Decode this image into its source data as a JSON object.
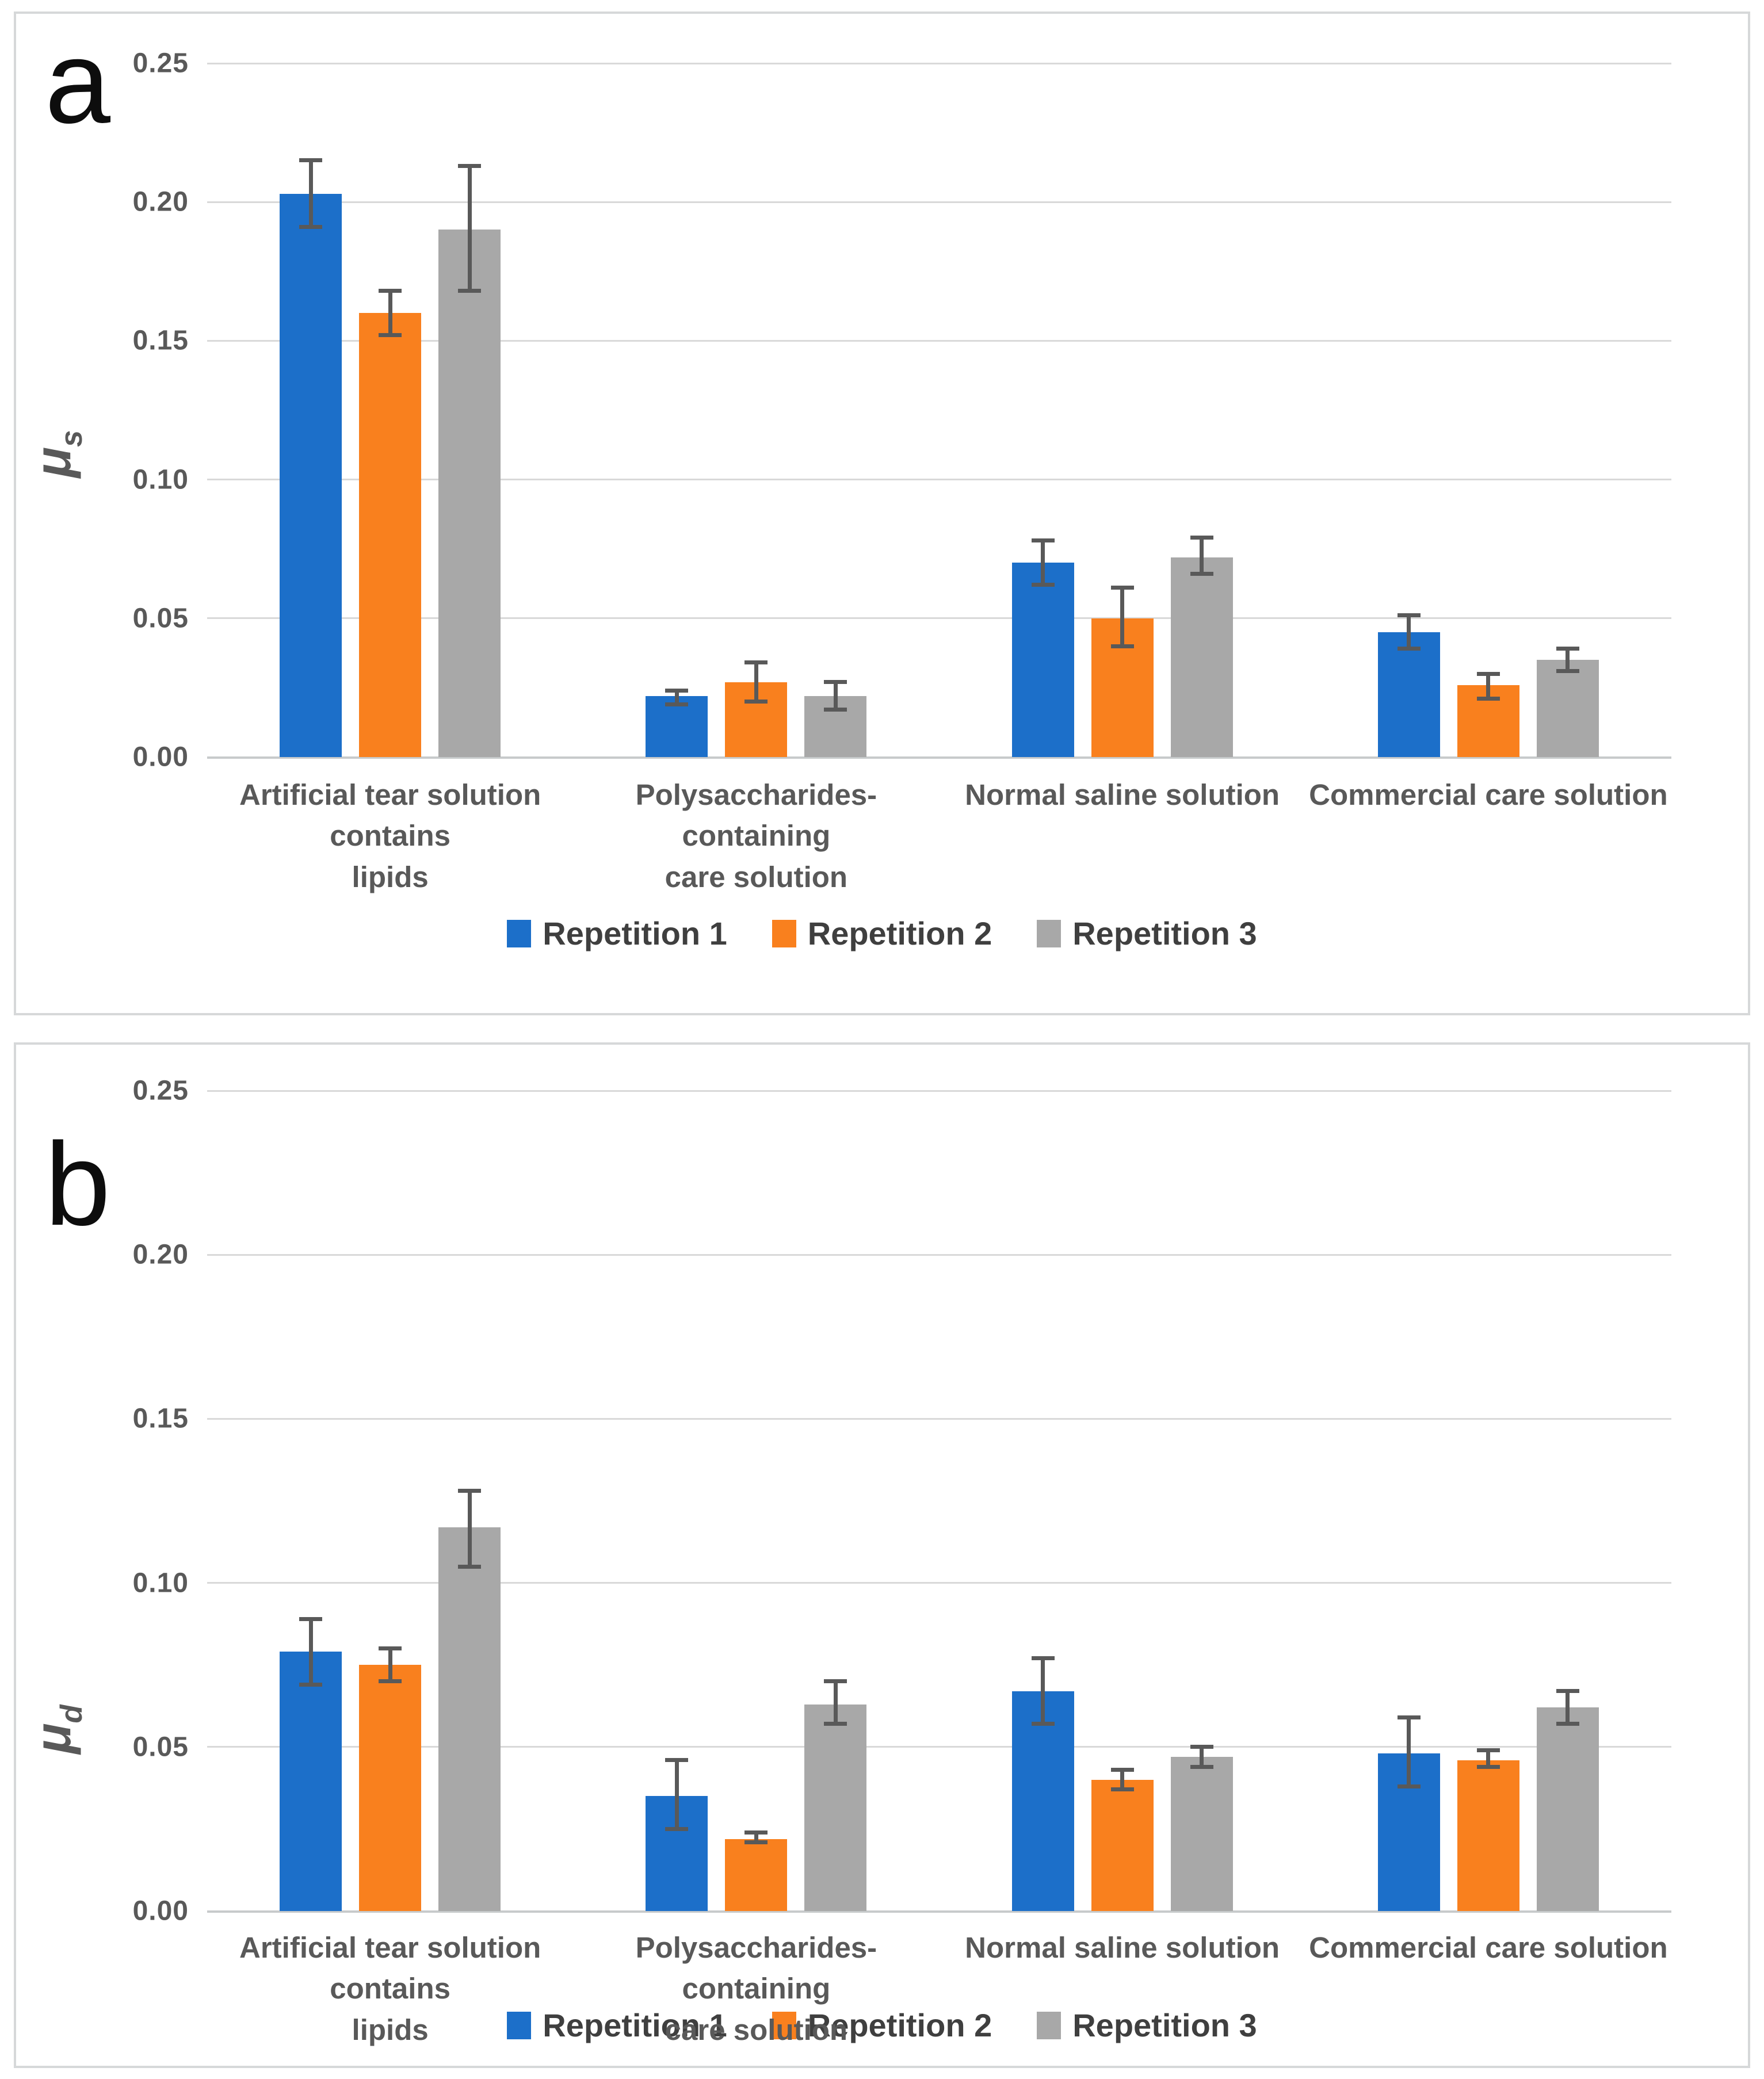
{
  "figure": {
    "background": "#ffffff",
    "panel_border_color": "#d6d8d9",
    "gridline_color": "#d9d9d9",
    "error_bar_color": "#595959",
    "tick_text_color": "#595959",
    "category_text_color": "#595959",
    "legend_text_color": "#3f3f3f"
  },
  "chart_data": [
    {
      "type": "bar",
      "panel_label": "a",
      "ylabel": "μs",
      "ylabel_base": "μ",
      "ylabel_sub": "s",
      "categories": [
        "Artificial tear solution contains\nlipids",
        "Polysaccharides-containing\ncare solution",
        "Normal saline solution",
        "Commercial care solution"
      ],
      "category_names": [
        "artificial-tear",
        "polysaccharides",
        "normal-saline",
        "commercial"
      ],
      "series": [
        {
          "name": "Repetition 1",
          "color": "#1C6FC9",
          "values": [
            0.203,
            0.022,
            0.07,
            0.045
          ],
          "error_low": [
            0.191,
            0.019,
            0.062,
            0.039
          ],
          "error_high": [
            0.215,
            0.024,
            0.078,
            0.051
          ]
        },
        {
          "name": "Repetition 2",
          "color": "#F9801E",
          "values": [
            0.16,
            0.027,
            0.05,
            0.026
          ],
          "error_low": [
            0.152,
            0.02,
            0.04,
            0.021
          ],
          "error_high": [
            0.168,
            0.034,
            0.061,
            0.03
          ]
        },
        {
          "name": "Repetition 3",
          "color": "#A8A8A8",
          "values": [
            0.19,
            0.022,
            0.072,
            0.035
          ],
          "error_low": [
            0.168,
            0.017,
            0.066,
            0.031
          ],
          "error_high": [
            0.213,
            0.027,
            0.079,
            0.039
          ]
        }
      ],
      "ylim": [
        0,
        0.25
      ],
      "yticks": [
        0,
        0.05,
        0.1,
        0.15,
        0.2,
        0.25
      ],
      "ytick_labels": [
        "0.00",
        "0.05",
        "0.10",
        "0.15",
        "0.20",
        "0.25"
      ],
      "grid": true,
      "legend_position": "bottom",
      "error_bars": true
    },
    {
      "type": "bar",
      "panel_label": "b",
      "ylabel": "μd",
      "ylabel_base": "μ",
      "ylabel_sub": "d",
      "categories": [
        "Artificial tear solution contains\nlipids",
        "Polysaccharides-containing\ncare solution",
        "Normal saline solution",
        "Commercial care solution"
      ],
      "category_names": [
        "artificial-tear",
        "polysaccharides",
        "normal-saline",
        "commercial"
      ],
      "series": [
        {
          "name": "Repetition 1",
          "color": "#1C6FC9",
          "values": [
            0.079,
            0.035,
            0.067,
            0.048
          ],
          "error_low": [
            0.069,
            0.025,
            0.057,
            0.038
          ],
          "error_high": [
            0.089,
            0.046,
            0.077,
            0.059
          ]
        },
        {
          "name": "Repetition 2",
          "color": "#F9801E",
          "values": [
            0.075,
            0.022,
            0.04,
            0.046
          ],
          "error_low": [
            0.07,
            0.021,
            0.037,
            0.044
          ],
          "error_high": [
            0.08,
            0.024,
            0.043,
            0.049
          ]
        },
        {
          "name": "Repetition 3",
          "color": "#A8A8A8",
          "values": [
            0.117,
            0.063,
            0.047,
            0.062
          ],
          "error_low": [
            0.105,
            0.057,
            0.044,
            0.057
          ],
          "error_high": [
            0.128,
            0.07,
            0.05,
            0.067
          ]
        }
      ],
      "ylim": [
        0,
        0.25
      ],
      "yticks": [
        0,
        0.05,
        0.1,
        0.15,
        0.2,
        0.25
      ],
      "ytick_labels": [
        "0.00",
        "0.05",
        "0.10",
        "0.15",
        "0.20",
        "0.25"
      ],
      "grid": true,
      "legend_position": "bottom",
      "error_bars": true
    }
  ]
}
